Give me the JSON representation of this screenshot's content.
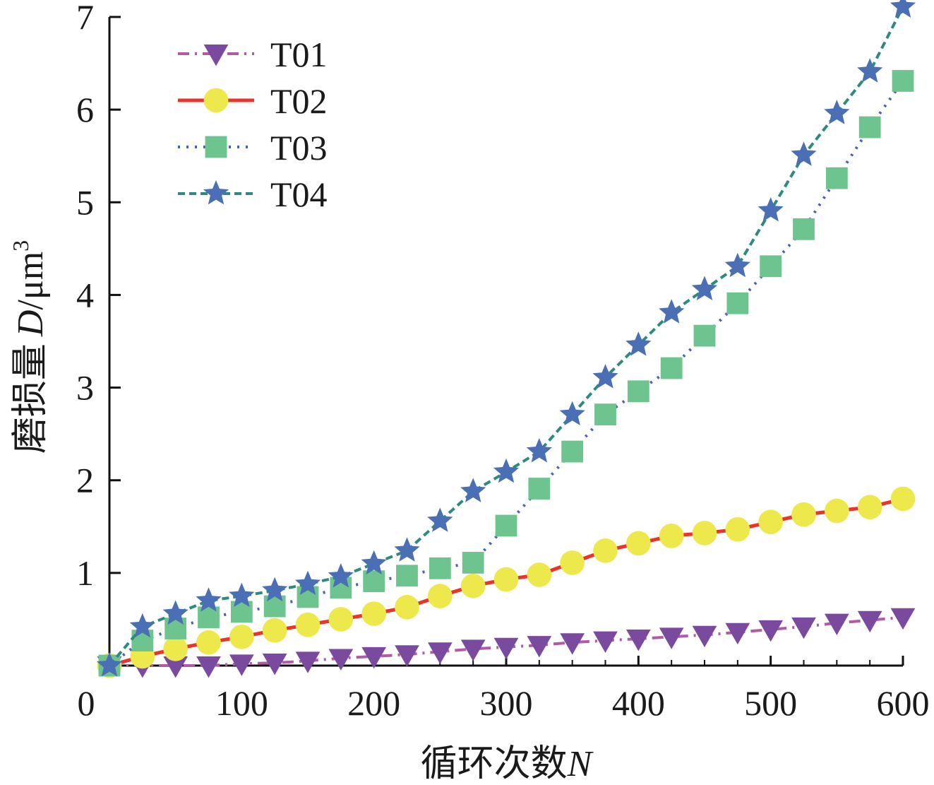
{
  "chart_data": {
    "type": "line",
    "title": "",
    "xlabel": "循环次数",
    "xlabel_symbol": "N",
    "ylabel": "磨损量",
    "ylabel_symbol": "D",
    "ylabel_unit": "/μm",
    "ylabel_unit_exp": "3",
    "xlim": [
      0,
      600
    ],
    "ylim": [
      0,
      7
    ],
    "xticks": [
      0,
      100,
      200,
      300,
      400,
      500,
      600
    ],
    "xtick_labels": [
      "0",
      "100",
      "200",
      "300",
      "400",
      "500",
      "600"
    ],
    "yticks": [
      1,
      2,
      3,
      4,
      5,
      6,
      7
    ],
    "ytick_labels": [
      "1",
      "2",
      "3",
      "4",
      "5",
      "6",
      "7"
    ],
    "grid": false,
    "legend": "top-left",
    "x": [
      0,
      25,
      50,
      75,
      100,
      125,
      150,
      175,
      200,
      225,
      250,
      275,
      300,
      325,
      350,
      375,
      400,
      425,
      450,
      475,
      500,
      525,
      550,
      575,
      600
    ],
    "series": [
      {
        "name": "T01",
        "color": "#b05aa8",
        "marker": "triangle-down",
        "marker_color": "#7a4a9e",
        "line_style": "dash-dot",
        "values": [
          0,
          0,
          0,
          0,
          0.02,
          0.03,
          0.05,
          0.08,
          0.1,
          0.12,
          0.15,
          0.18,
          0.2,
          0.22,
          0.25,
          0.27,
          0.29,
          0.31,
          0.33,
          0.36,
          0.39,
          0.42,
          0.46,
          0.49,
          0.52
        ]
      },
      {
        "name": "T02",
        "color": "#e8342b",
        "marker": "circle",
        "marker_color": "#ede84c",
        "line_style": "solid",
        "values": [
          0,
          0.1,
          0.18,
          0.25,
          0.31,
          0.38,
          0.44,
          0.5,
          0.56,
          0.63,
          0.75,
          0.86,
          0.93,
          0.98,
          1.11,
          1.24,
          1.32,
          1.4,
          1.43,
          1.47,
          1.55,
          1.63,
          1.67,
          1.71,
          1.8
        ]
      },
      {
        "name": "T03",
        "color": "#4a63ae",
        "marker": "square",
        "marker_color": "#6ec48f",
        "line_style": "dotted",
        "values": [
          0,
          0.27,
          0.4,
          0.52,
          0.58,
          0.64,
          0.74,
          0.84,
          0.91,
          0.97,
          1.05,
          1.11,
          1.51,
          1.91,
          2.31,
          2.71,
          2.96,
          3.21,
          3.56,
          3.91,
          4.31,
          4.71,
          5.26,
          5.81,
          6.31
        ]
      },
      {
        "name": "T04",
        "color": "#2f8a7e",
        "marker": "star",
        "marker_color": "#4a6fb5",
        "line_style": "dashed",
        "values": [
          0,
          0.42,
          0.56,
          0.7,
          0.75,
          0.81,
          0.88,
          0.96,
          1.1,
          1.24,
          1.56,
          1.88,
          2.09,
          2.31,
          2.71,
          3.11,
          3.46,
          3.81,
          4.06,
          4.31,
          4.91,
          5.51,
          5.96,
          6.41,
          7.11
        ]
      }
    ]
  }
}
